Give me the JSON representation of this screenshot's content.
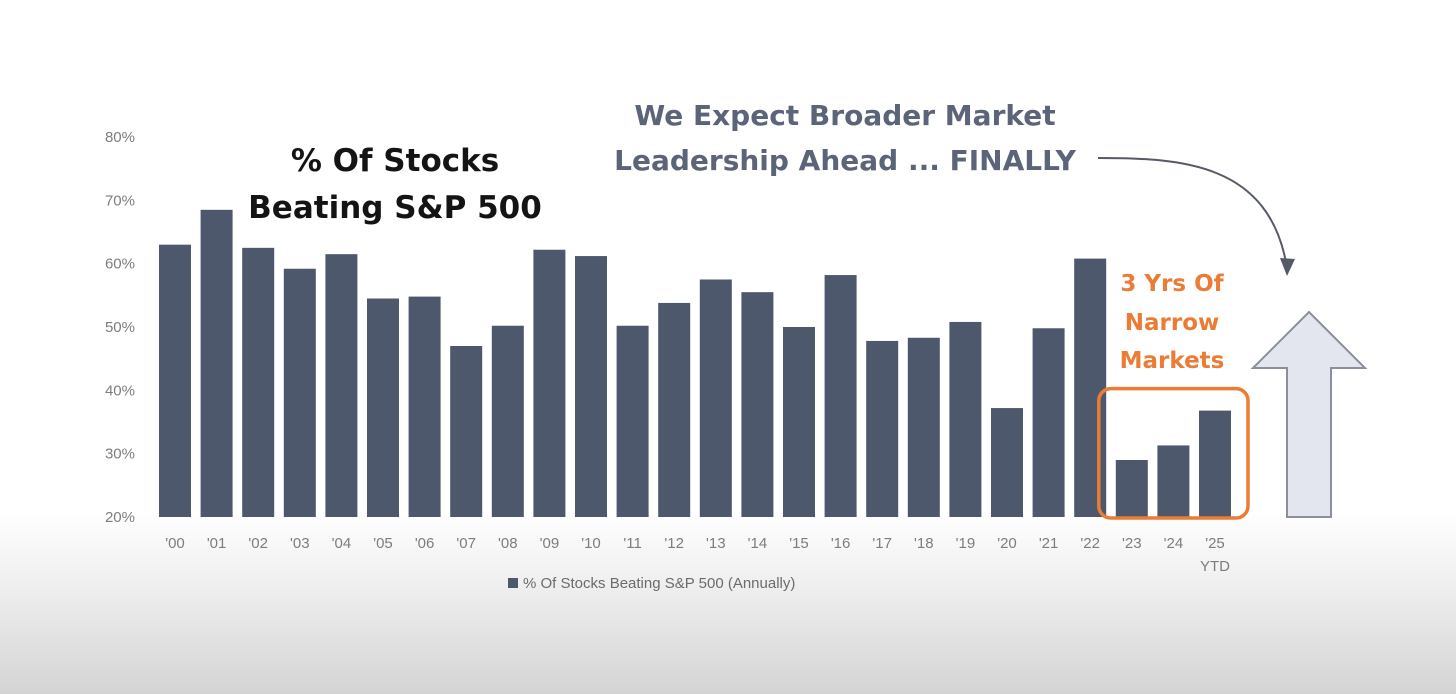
{
  "chart_data": {
    "type": "bar",
    "title_lines": [
      "% Of Stocks",
      "Beating S&P 500"
    ],
    "categories": [
      "'00",
      "'01",
      "'02",
      "'03",
      "'04",
      "'05",
      "'06",
      "'07",
      "'08",
      "'09",
      "'10",
      "'11",
      "'12",
      "'13",
      "'14",
      "'15",
      "'16",
      "'17",
      "'18",
      "'19",
      "'20",
      "'21",
      "'22",
      "'23",
      "'24",
      "'25"
    ],
    "category_sublabels": {
      "'25": "YTD"
    },
    "series": [
      {
        "name": "% Of Stocks Beating S&P 500 (Annually)",
        "color": "#4d586c",
        "values": [
          63.0,
          68.5,
          62.5,
          59.2,
          61.5,
          54.5,
          54.8,
          47.0,
          50.2,
          62.2,
          61.2,
          50.2,
          53.8,
          57.5,
          55.5,
          50.0,
          58.2,
          47.8,
          48.3,
          50.8,
          37.2,
          49.8,
          60.8,
          29.0,
          31.3,
          36.8
        ]
      }
    ],
    "ylim": [
      20,
      80
    ],
    "yticks": [
      20,
      30,
      40,
      50,
      60,
      70,
      80
    ],
    "ytick_labels": [
      "20%",
      "30%",
      "40%",
      "50%",
      "60%",
      "70%",
      "80%"
    ],
    "xlabel": "",
    "ylabel": "",
    "grid": false,
    "legend_position": "bottom",
    "annotations": {
      "headline_lines": [
        "We Expect Broader Market",
        "Leadership Ahead ... FINALLY"
      ],
      "callout_lines": [
        "3 Yrs Of",
        "Narrow",
        "Markets"
      ],
      "highlight_categories": [
        "'23",
        "'24",
        "'25"
      ],
      "highlight_color": "#ea7c35",
      "up_arrow_fill": "#e3e6ee",
      "up_arrow_stroke": "#8c8f99"
    }
  }
}
